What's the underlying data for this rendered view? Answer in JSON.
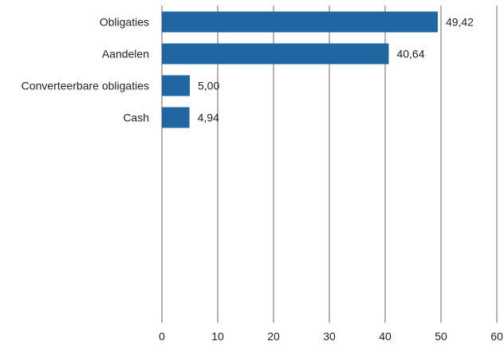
{
  "chart_data": {
    "type": "bar",
    "orientation": "horizontal",
    "categories": [
      "Obligaties",
      "Aandelen",
      "Converteerbare obligaties",
      "Cash"
    ],
    "values": [
      49.42,
      40.64,
      5.0,
      4.94
    ],
    "value_labels": [
      "49,42",
      "40,64",
      "5,00",
      "4,94"
    ],
    "title": "",
    "xlabel": "",
    "ylabel": "",
    "xlim": [
      0,
      60
    ],
    "xticks": [
      0,
      10,
      20,
      30,
      40,
      50,
      60
    ],
    "grid": true,
    "legend": "none",
    "bar_color": "#1f66a3"
  }
}
